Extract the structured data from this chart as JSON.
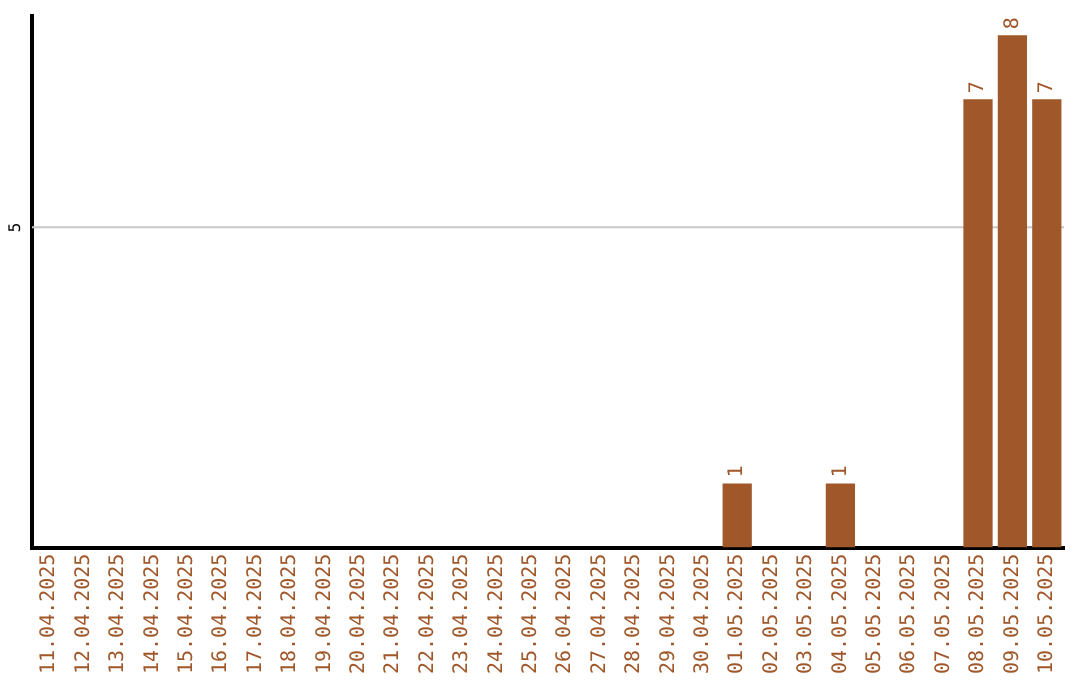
{
  "chart_data": {
    "type": "bar",
    "categories": [
      "11.04.2025",
      "12.04.2025",
      "13.04.2025",
      "14.04.2025",
      "15.04.2025",
      "16.04.2025",
      "17.04.2025",
      "18.04.2025",
      "19.04.2025",
      "20.04.2025",
      "21.04.2025",
      "22.04.2025",
      "23.04.2025",
      "24.04.2025",
      "25.04.2025",
      "26.04.2025",
      "27.04.2025",
      "28.04.2025",
      "29.04.2025",
      "30.04.2025",
      "01.05.2025",
      "02.05.2025",
      "03.05.2025",
      "04.05.2025",
      "05.05.2025",
      "06.05.2025",
      "07.05.2025",
      "08.05.2025",
      "09.05.2025",
      "10.05.2025"
    ],
    "values": [
      null,
      null,
      null,
      null,
      null,
      null,
      null,
      null,
      null,
      null,
      null,
      null,
      null,
      null,
      null,
      null,
      null,
      null,
      null,
      null,
      1,
      null,
      null,
      1,
      null,
      null,
      null,
      7,
      8,
      7
    ],
    "data_labels": true,
    "color": "#a0572a",
    "ylim": [
      0,
      8.3
    ],
    "ref_lines": [
      {
        "axis": "y",
        "value": 5,
        "label": "5",
        "color": "#c8c8c8"
      }
    ],
    "legend": false
  }
}
